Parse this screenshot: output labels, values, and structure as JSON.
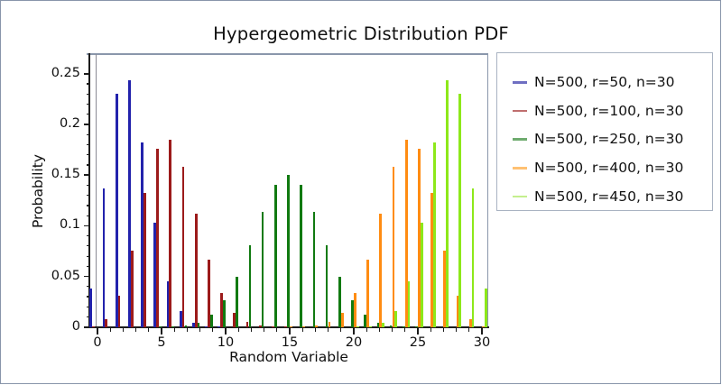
{
  "title": "Hypergeometric Distribution PDF",
  "legend": {
    "items": [
      {
        "label": "N=500, r=50, n=30",
        "swatch_color": "#6F6FC2"
      },
      {
        "label": "N=500, r=100, n=30",
        "swatch_color": "#C06F6F"
      },
      {
        "label": "N=500, r=250, n=30",
        "swatch_color": "#6FAC6F"
      },
      {
        "label": "N=500, r=400, n=30",
        "swatch_color": "#FFC173"
      },
      {
        "label": "N=500, r=450, n=30",
        "swatch_color": "#C4EF8E"
      }
    ]
  },
  "chart_data": {
    "type": "bar",
    "title": "Hypergeometric Distribution PDF",
    "xlabel": "Random Variable",
    "ylabel": "Probability",
    "xlim": [
      -0.6,
      30.6
    ],
    "ylim": [
      0,
      0.27
    ],
    "grid": false,
    "legend_position": "right",
    "x_major_ticks": [
      0,
      5,
      10,
      15,
      20,
      25,
      30
    ],
    "x_major_tick_labels": [
      "0",
      "5",
      "10",
      "15",
      "20",
      "25",
      "30"
    ],
    "x_minor_tick_step": 1,
    "y_major_ticks": [
      0,
      0.05,
      0.1,
      0.15,
      0.2,
      0.25
    ],
    "y_major_tick_labels": [
      "0",
      "0.05",
      "0.1",
      "0.15",
      "0.2",
      "0.25"
    ],
    "y_minor_tick_step": 0.01,
    "x_values": [
      0,
      1,
      2,
      3,
      4,
      5,
      6,
      7,
      8,
      9,
      10,
      11,
      12,
      13,
      14,
      15,
      16,
      17,
      18,
      19,
      20,
      21,
      22,
      23,
      24,
      25,
      26,
      27,
      28,
      29,
      30
    ],
    "series": [
      {
        "name": "N=500, r=50, n=30",
        "color": "#2222AC",
        "values": [
          0.0383,
          0.1366,
          0.2299,
          0.2435,
          0.1822,
          0.1026,
          0.0451,
          0.016,
          0.0046,
          0.0011,
          0.0002,
          0,
          0,
          0,
          0,
          0,
          0,
          0,
          0,
          0,
          0,
          0,
          0,
          0,
          0,
          0,
          0,
          0,
          0,
          0,
          0
        ]
      },
      {
        "name": "N=500, r=100, n=30",
        "color": "#9C1B1B",
        "values": [
          0.001,
          0.008,
          0.0308,
          0.0754,
          0.1321,
          0.1758,
          0.1851,
          0.1582,
          0.1119,
          0.0664,
          0.0334,
          0.0143,
          0.0053,
          0.0017,
          0.0005,
          0.0001,
          0,
          0,
          0,
          0,
          0,
          0,
          0,
          0,
          0,
          0,
          0,
          0,
          0,
          0,
          0
        ]
      },
      {
        "name": "N=500, r=250, n=30",
        "color": "#117A11",
        "values": [
          0,
          0,
          0,
          0,
          0,
          0.0001,
          0.0004,
          0.0015,
          0.0046,
          0.0119,
          0.0261,
          0.0494,
          0.0805,
          0.1139,
          0.1401,
          0.1501,
          0.1401,
          0.1139,
          0.0805,
          0.0494,
          0.0261,
          0.0119,
          0.0046,
          0.0015,
          0.0004,
          0.0001,
          0,
          0,
          0,
          0,
          0
        ]
      },
      {
        "name": "N=500, r=400, n=30",
        "color": "#FF8C12",
        "values": [
          0,
          0,
          0,
          0,
          0,
          0,
          0,
          0,
          0,
          0,
          0,
          0,
          0,
          0,
          0,
          0.0001,
          0.0005,
          0.0017,
          0.0053,
          0.0143,
          0.0334,
          0.0664,
          0.1119,
          0.1582,
          0.1851,
          0.1758,
          0.1321,
          0.0754,
          0.0308,
          0.008,
          0.001
        ]
      },
      {
        "name": "N=500, r=450, n=30",
        "color": "#8DE81A",
        "values": [
          0,
          0,
          0,
          0,
          0,
          0,
          0,
          0,
          0,
          0,
          0,
          0,
          0,
          0,
          0,
          0,
          0,
          0,
          0,
          0,
          0.0002,
          0.0011,
          0.0046,
          0.016,
          0.0451,
          0.1026,
          0.1822,
          0.2435,
          0.2299,
          0.1366,
          0.0383
        ]
      }
    ]
  }
}
